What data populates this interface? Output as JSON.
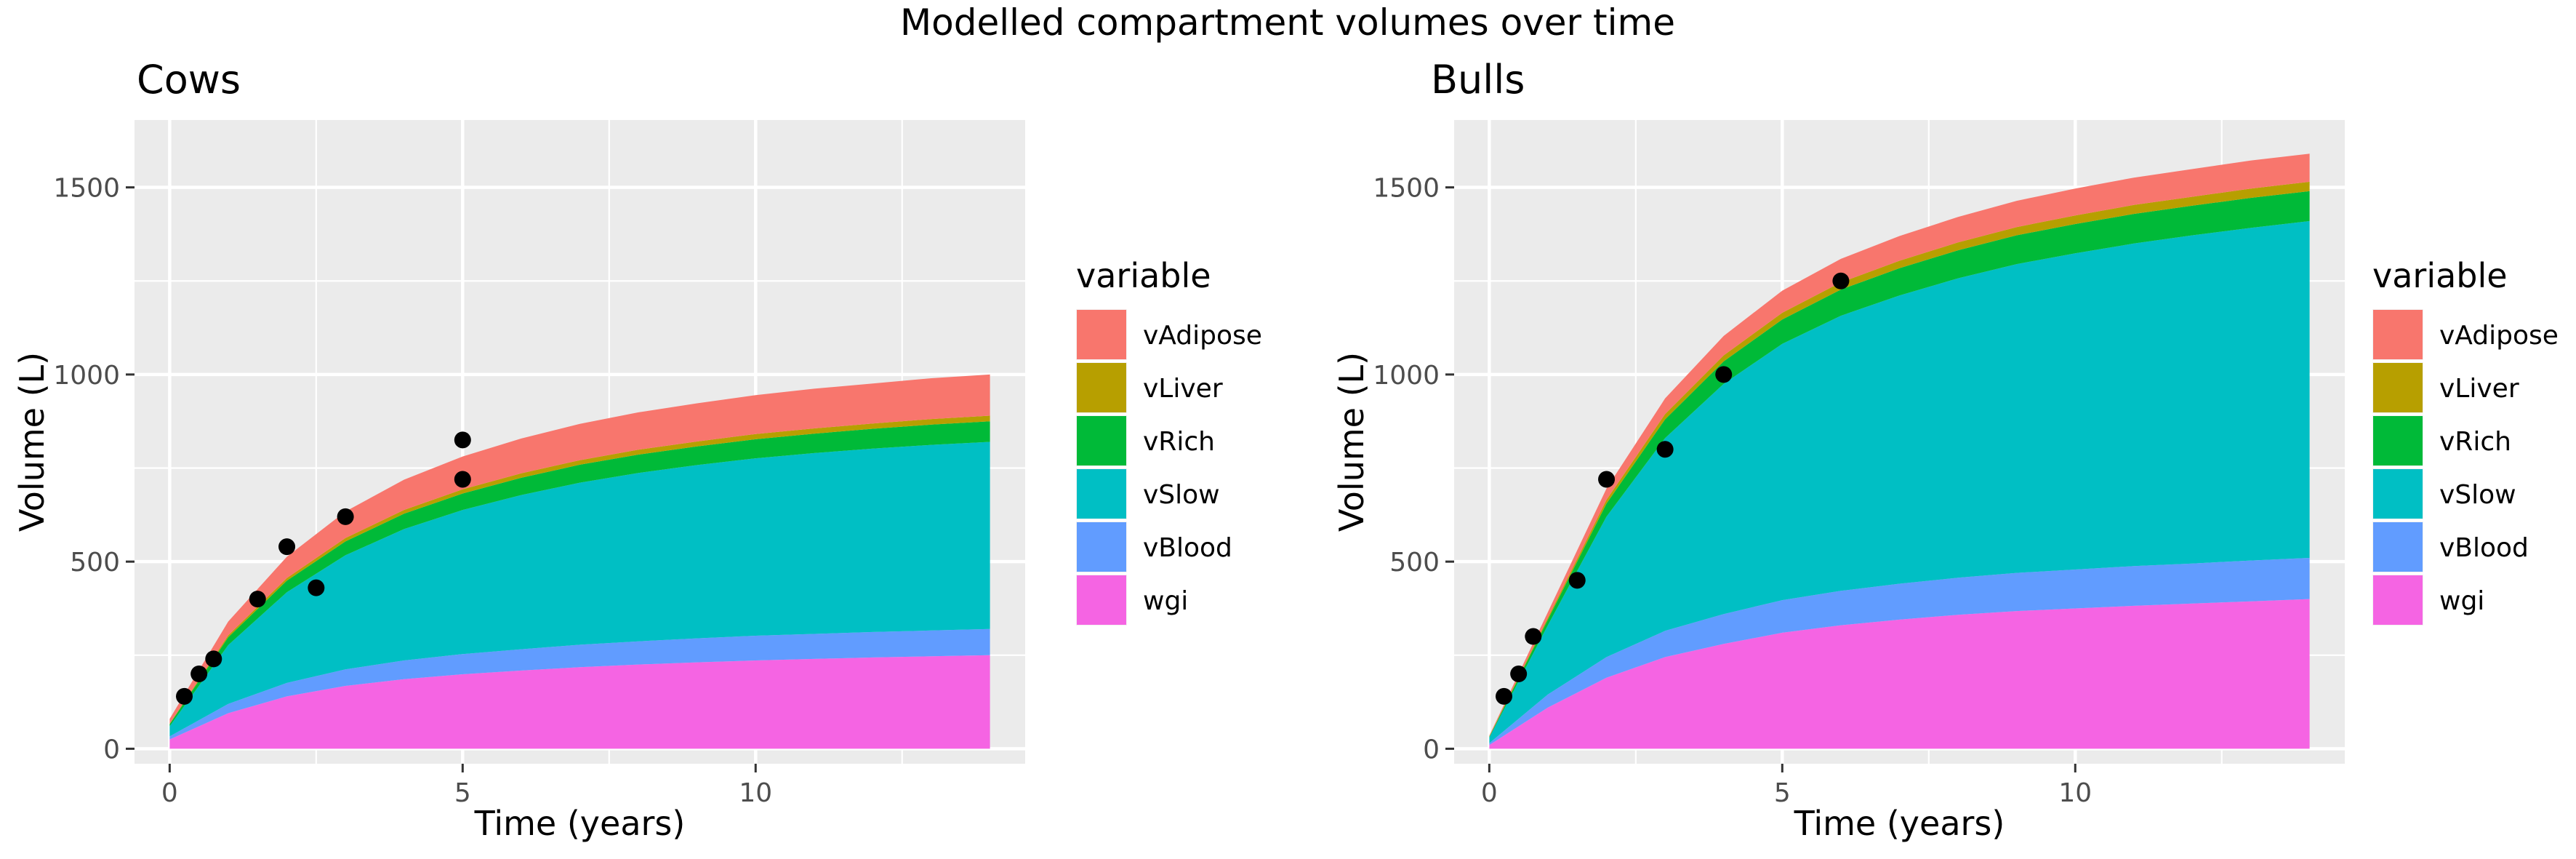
{
  "figure_title": "Modelled compartment volumes over time",
  "legend_title": "variable",
  "series": [
    {
      "name": "vAdipose",
      "color": "#F8766D"
    },
    {
      "name": "vLiver",
      "color": "#B79F00"
    },
    {
      "name": "vRich",
      "color": "#00BA38"
    },
    {
      "name": "vSlow",
      "color": "#00BFC4"
    },
    {
      "name": "vBlood",
      "color": "#619CFF"
    },
    {
      "name": "wgi",
      "color": "#F564E3"
    }
  ],
  "chart_data": [
    {
      "type": "area",
      "title": "Cows",
      "xlabel": "Time (years)",
      "ylabel": "Volume (L)",
      "xlim": [
        -0.6,
        14.6
      ],
      "ylim": [
        -40,
        1680
      ],
      "x_ticks": [
        0,
        5,
        10
      ],
      "y_ticks": [
        0,
        500,
        1000,
        1500
      ],
      "grid": true,
      "stacked": true,
      "legend_position": "right",
      "x": [
        0,
        1,
        2,
        3,
        4,
        5,
        6,
        7,
        8,
        9,
        10,
        11,
        12,
        13,
        14
      ],
      "series": [
        {
          "name": "wgi",
          "values": [
            25,
            95,
            140,
            168,
            186,
            199,
            209,
            218,
            225,
            231,
            236,
            240,
            244,
            247,
            250
          ]
        },
        {
          "name": "vBlood",
          "values": [
            8,
            25,
            36,
            44,
            50,
            54,
            57,
            60,
            62,
            64,
            66,
            67,
            68,
            69,
            70
          ]
        },
        {
          "name": "vSlow",
          "values": [
            27,
            157,
            242,
            305,
            351,
            385,
            412,
            433,
            450,
            463,
            474,
            483,
            490,
            496,
            500
          ]
        },
        {
          "name": "vRich",
          "values": [
            6,
            21,
            31,
            37,
            41,
            44,
            46,
            48,
            49,
            50,
            51,
            52,
            53,
            54,
            55
          ]
        },
        {
          "name": "vLiver",
          "values": [
            1,
            5,
            7,
            9,
            10,
            11,
            12,
            12,
            13,
            13,
            14,
            14,
            14,
            15,
            15
          ]
        },
        {
          "name": "vAdipose",
          "values": [
            13,
            37,
            57,
            71,
            81,
            88,
            93,
            97,
            100,
            102,
            104,
            106,
            107,
            109,
            110
          ]
        }
      ],
      "points": [
        {
          "x": 0.25,
          "y": 140
        },
        {
          "x": 0.5,
          "y": 200
        },
        {
          "x": 0.75,
          "y": 240
        },
        {
          "x": 1.5,
          "y": 400
        },
        {
          "x": 2,
          "y": 540
        },
        {
          "x": 2.5,
          "y": 430
        },
        {
          "x": 3,
          "y": 620
        },
        {
          "x": 5,
          "y": 720
        },
        {
          "x": 5,
          "y": 825
        }
      ]
    },
    {
      "type": "area",
      "title": "Bulls",
      "xlabel": "Time (years)",
      "ylabel": "Volume (L)",
      "xlim": [
        -0.6,
        14.6
      ],
      "ylim": [
        -40,
        1680
      ],
      "x_ticks": [
        0,
        5,
        10
      ],
      "y_ticks": [
        0,
        500,
        1000,
        1500
      ],
      "grid": true,
      "stacked": true,
      "legend_position": "right",
      "x": [
        0,
        1,
        2,
        3,
        4,
        5,
        6,
        7,
        8,
        9,
        10,
        11,
        12,
        13,
        14
      ],
      "series": [
        {
          "name": "wgi",
          "values": [
            10,
            110,
            190,
            245,
            280,
            310,
            330,
            345,
            358,
            368,
            375,
            382,
            388,
            394,
            400
          ]
        },
        {
          "name": "vBlood",
          "values": [
            5,
            35,
            55,
            70,
            80,
            87,
            92,
            96,
            99,
            102,
            104,
            106,
            107,
            109,
            110
          ]
        },
        {
          "name": "vSlow",
          "values": [
            15,
            185,
            375,
            515,
            615,
            685,
            735,
            770,
            800,
            825,
            845,
            862,
            877,
            889,
            900
          ]
        },
        {
          "name": "vRich",
          "values": [
            2,
            15,
            35,
            50,
            60,
            65,
            70,
            73,
            75,
            77,
            78,
            79,
            79,
            80,
            80
          ]
        },
        {
          "name": "vLiver",
          "values": [
            1,
            5,
            10,
            14,
            16,
            18,
            19,
            20,
            21,
            22,
            23,
            24,
            24,
            25,
            25
          ]
        },
        {
          "name": "vAdipose",
          "values": [
            2,
            15,
            30,
            42,
            52,
            59,
            63,
            66,
            68,
            70,
            72,
            73,
            74,
            75,
            75
          ]
        }
      ],
      "points": [
        {
          "x": 0.25,
          "y": 140
        },
        {
          "x": 0.5,
          "y": 200
        },
        {
          "x": 0.75,
          "y": 300
        },
        {
          "x": 1.5,
          "y": 450
        },
        {
          "x": 2,
          "y": 720
        },
        {
          "x": 3,
          "y": 800
        },
        {
          "x": 4,
          "y": 1000
        },
        {
          "x": 6,
          "y": 1250
        }
      ]
    }
  ]
}
